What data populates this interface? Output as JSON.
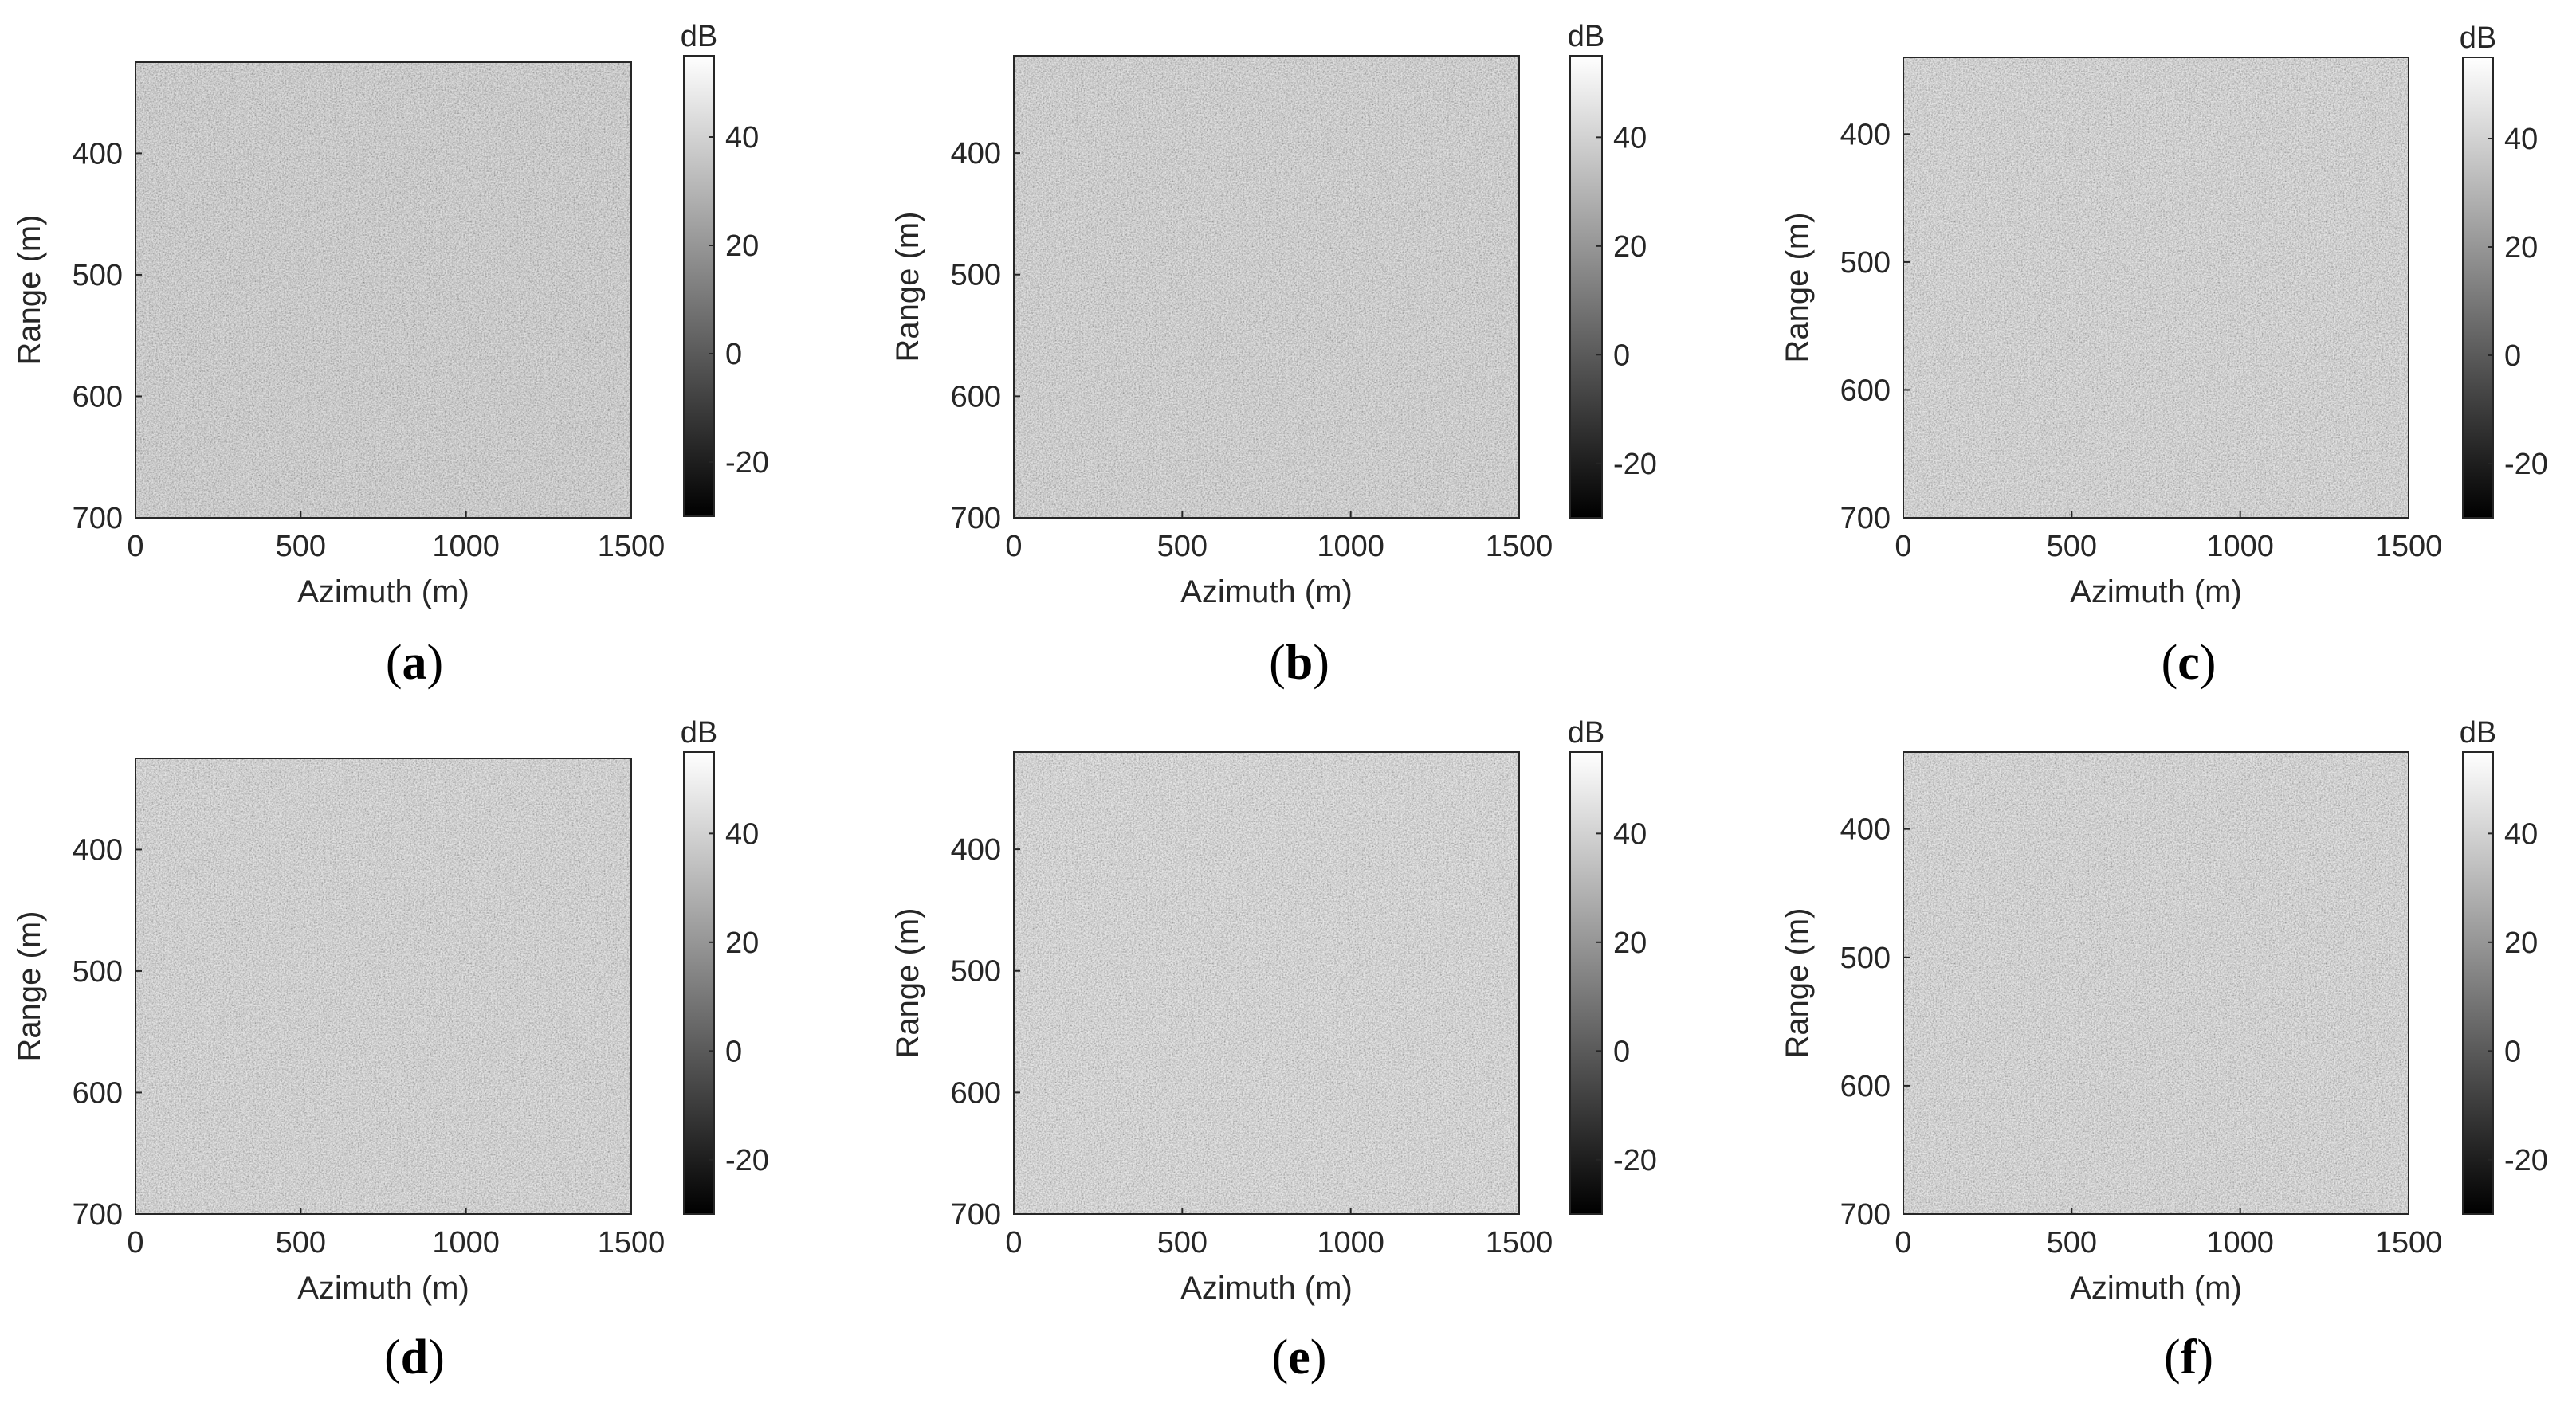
{
  "chart_data": [
    {
      "type": "heatmap",
      "panel_label": "a",
      "xlabel": "Azimuth (m)",
      "ylabel": "Range (m)",
      "xlim": [
        0,
        1500
      ],
      "ylim": [
        325,
        700
      ],
      "y_reversed": true,
      "xticks": [
        0,
        500,
        1000,
        1500
      ],
      "yticks": [
        400,
        500,
        600,
        700
      ],
      "colorbar": {
        "label": "dB",
        "range": [
          -30,
          55
        ],
        "ticks": [
          -20,
          0,
          20,
          40
        ],
        "colormap": "gray"
      },
      "description_values": {
        "mean_level_db": 30
      }
    },
    {
      "type": "heatmap",
      "panel_label": "b",
      "xlabel": "Azimuth (m)",
      "ylabel": "Range (m)",
      "xlim": [
        0,
        1500
      ],
      "ylim": [
        320,
        700
      ],
      "y_reversed": true,
      "xticks": [
        0,
        500,
        1000,
        1500
      ],
      "yticks": [
        400,
        500,
        600,
        700
      ],
      "colorbar": {
        "label": "dB",
        "range": [
          -30,
          55
        ],
        "ticks": [
          -20,
          0,
          20,
          40
        ],
        "colormap": "gray"
      },
      "description_values": {
        "mean_level_db": 32
      }
    },
    {
      "type": "heatmap",
      "panel_label": "c",
      "xlabel": "Azimuth (m)",
      "ylabel": "Range (m)",
      "xlim": [
        0,
        1500
      ],
      "ylim": [
        340,
        700
      ],
      "y_reversed": true,
      "xticks": [
        0,
        500,
        1000,
        1500
      ],
      "yticks": [
        400,
        500,
        600,
        700
      ],
      "colorbar": {
        "label": "dB",
        "range": [
          -30,
          55
        ],
        "ticks": [
          -20,
          0,
          20,
          40
        ],
        "colormap": "gray"
      },
      "description_values": {
        "mean_level_db": 34
      }
    },
    {
      "type": "heatmap",
      "panel_label": "d",
      "xlabel": "Azimuth (m)",
      "ylabel": "Range (m)",
      "xlim": [
        0,
        1500
      ],
      "ylim": [
        325,
        700
      ],
      "y_reversed": true,
      "xticks": [
        0,
        500,
        1000,
        1500
      ],
      "yticks": [
        400,
        500,
        600,
        700
      ],
      "colorbar": {
        "label": "dB",
        "range": [
          -30,
          55
        ],
        "ticks": [
          -20,
          0,
          20,
          40
        ],
        "colormap": "gray"
      },
      "description_values": {
        "mean_level_db": 34
      }
    },
    {
      "type": "heatmap",
      "panel_label": "e",
      "xlabel": "Azimuth (m)",
      "ylabel": "Range (m)",
      "xlim": [
        0,
        1500
      ],
      "ylim": [
        320,
        700
      ],
      "y_reversed": true,
      "xticks": [
        0,
        500,
        1000,
        1500
      ],
      "yticks": [
        400,
        500,
        600,
        700
      ],
      "colorbar": {
        "label": "dB",
        "range": [
          -30,
          55
        ],
        "ticks": [
          -20,
          0,
          20,
          40
        ],
        "colormap": "gray"
      },
      "description_values": {
        "mean_level_db": 36
      }
    },
    {
      "type": "heatmap",
      "panel_label": "f",
      "xlabel": "Azimuth (m)",
      "ylabel": "Range (m)",
      "xlim": [
        0,
        1500
      ],
      "ylim": [
        340,
        700
      ],
      "y_reversed": true,
      "xticks": [
        0,
        500,
        1000,
        1500
      ],
      "yticks": [
        400,
        500,
        600,
        700
      ],
      "colorbar": {
        "label": "dB",
        "range": [
          -30,
          55
        ],
        "ticks": [
          -20,
          0,
          20,
          40
        ],
        "colormap": "gray"
      },
      "description_values": {
        "mean_level_db": 35
      }
    }
  ],
  "colors": {
    "axis": "#262626",
    "frame": "#262626",
    "background": "#ffffff"
  }
}
